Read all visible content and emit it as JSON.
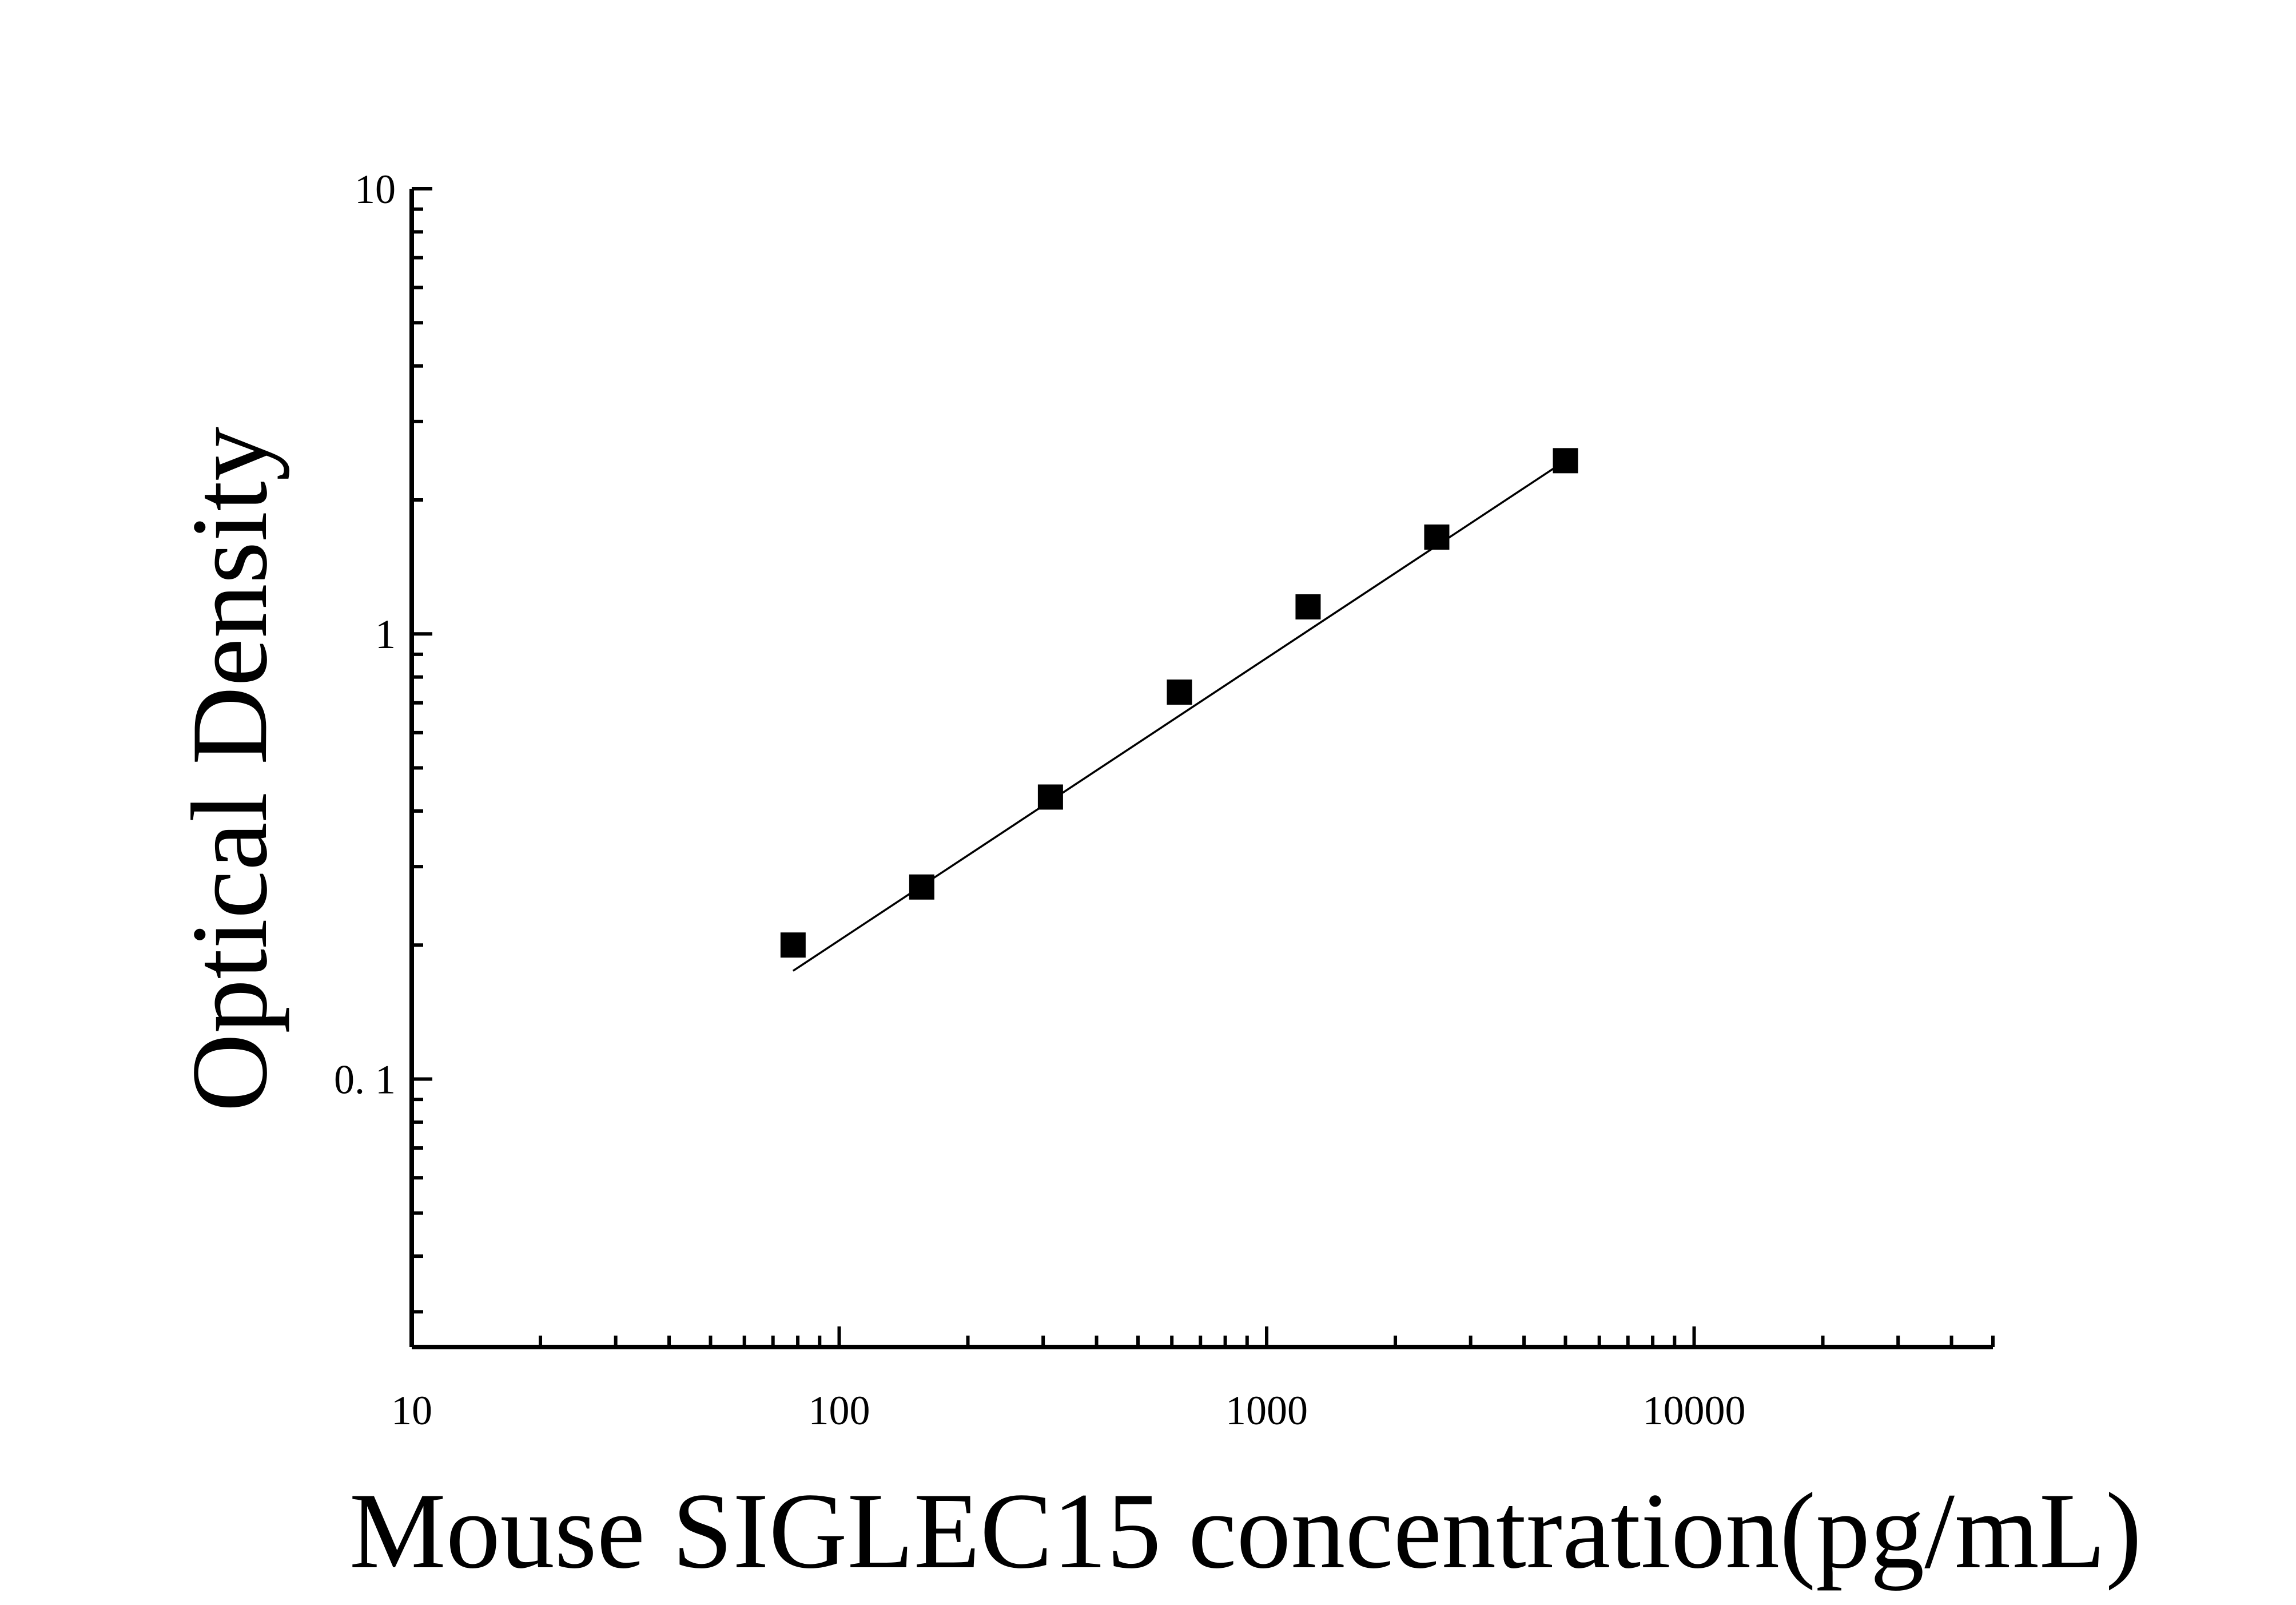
{
  "chart_data": {
    "type": "scatter",
    "xlabel": "Mouse SIGLEC15 concentration(pg/mL)",
    "ylabel": "Optical Density",
    "x_scale": "log",
    "y_scale": "log",
    "xlim": [
      10,
      50000
    ],
    "ylim": [
      0.025,
      10
    ],
    "x_ticks": [
      {
        "value": 10,
        "label": "10"
      },
      {
        "value": 100,
        "label": "100"
      },
      {
        "value": 1000,
        "label": "1000"
      },
      {
        "value": 10000,
        "label": "10000"
      }
    ],
    "y_ticks": [
      {
        "value": 0.1,
        "label": "0. 1"
      },
      {
        "value": 1,
        "label": "1"
      },
      {
        "value": 10,
        "label": "10"
      }
    ],
    "grid": false,
    "marker": "square",
    "series": [
      {
        "x": [
          78,
          156,
          312,
          625,
          1250,
          2500,
          5000
        ],
        "y": [
          0.2,
          0.27,
          0.43,
          0.74,
          1.15,
          1.65,
          2.45
        ]
      }
    ],
    "fit_line": {
      "x": [
        78,
        5000
      ],
      "y": [
        0.175,
        2.45
      ]
    },
    "colors": {
      "marks": "#000000",
      "axis": "#000000",
      "background": "#ffffff"
    }
  }
}
